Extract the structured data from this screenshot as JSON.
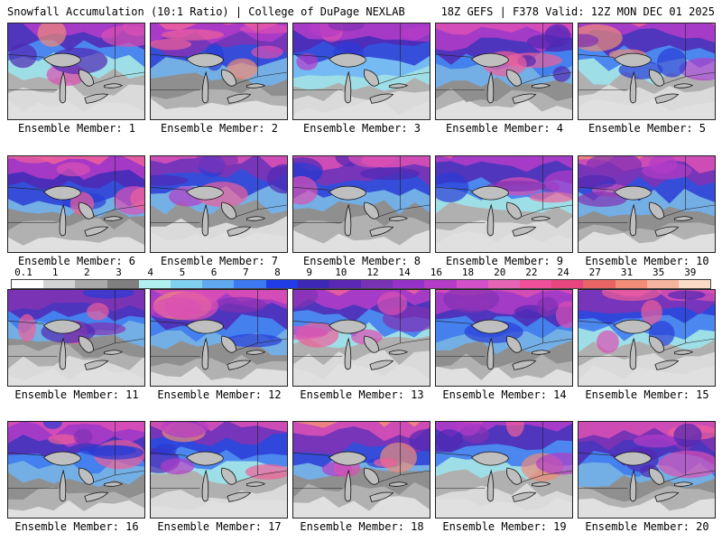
{
  "header": {
    "left": "Snowfall Accumulation (10:1 Ratio) | College of DuPage NEXLAB",
    "right": "18Z GEFS | F378 Valid: 12Z MON DEC 01 2025"
  },
  "legend": {
    "labels": [
      "0.1",
      "1",
      "2",
      "3",
      "4",
      "5",
      "6",
      "7",
      "8",
      "9",
      "10",
      "12",
      "14",
      "16",
      "18",
      "20",
      "22",
      "24",
      "27",
      "31",
      "35",
      "39"
    ],
    "colors": [
      "#ffffff",
      "#d3d3d3",
      "#a9a9a9",
      "#7f7f7f",
      "#b0f0f0",
      "#80d0f0",
      "#60a8f0",
      "#3c78f0",
      "#1f3ce6",
      "#3c28b4",
      "#5a28b4",
      "#7832b4",
      "#9632c8",
      "#b43cc8",
      "#d250c8",
      "#e664b4",
      "#f0509a",
      "#e6467d",
      "#e66464",
      "#f08c78",
      "#f5b4a0",
      "#fadcc8"
    ]
  },
  "members": [
    {
      "label": "Ensemble Member: 1",
      "intensity": 0.8
    },
    {
      "label": "Ensemble Member: 2",
      "intensity": 0.65
    },
    {
      "label": "Ensemble Member: 3",
      "intensity": 0.45
    },
    {
      "label": "Ensemble Member: 4",
      "intensity": 0.5
    },
    {
      "label": "Ensemble Member: 5",
      "intensity": 0.7
    },
    {
      "label": "Ensemble Member: 6",
      "intensity": 0.6
    },
    {
      "label": "Ensemble Member: 7",
      "intensity": 0.85
    },
    {
      "label": "Ensemble Member: 8",
      "intensity": 0.8
    },
    {
      "label": "Ensemble Member: 9",
      "intensity": 0.75
    },
    {
      "label": "Ensemble Member: 10",
      "intensity": 0.7
    },
    {
      "label": "Ensemble Member: 11",
      "intensity": 0.4
    },
    {
      "label": "Ensemble Member: 12",
      "intensity": 0.55
    },
    {
      "label": "Ensemble Member: 13",
      "intensity": 0.7
    },
    {
      "label": "Ensemble Member: 14",
      "intensity": 0.55
    },
    {
      "label": "Ensemble Member: 15",
      "intensity": 0.6
    },
    {
      "label": "Ensemble Member: 16",
      "intensity": 0.55
    },
    {
      "label": "Ensemble Member: 17",
      "intensity": 0.6
    },
    {
      "label": "Ensemble Member: 18",
      "intensity": 0.7
    },
    {
      "label": "Ensemble Member: 19",
      "intensity": 0.75
    },
    {
      "label": "Ensemble Member: 20",
      "intensity": 0.45
    }
  ]
}
